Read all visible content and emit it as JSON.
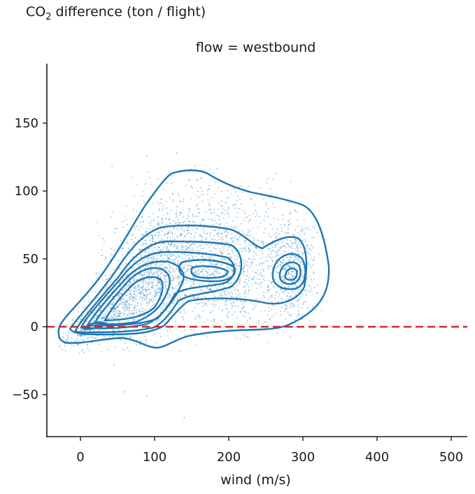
{
  "chart_data": {
    "type": "scatter",
    "title": "flow = westbound",
    "ylabel": "CO2 difference (ton / flight)",
    "ylabel_main": "CO",
    "ylabel_sub": "2",
    "ylabel_rest": " difference (ton / flight)",
    "xlabel": "wind (m/s)",
    "xlim": [
      -47,
      520
    ],
    "ylim": [
      -82,
      192
    ],
    "xticks": [
      0,
      100,
      200,
      300,
      400,
      500
    ],
    "yticks": [
      -50,
      0,
      50,
      100,
      150
    ],
    "reference_line": {
      "y": 0,
      "style": "dashed",
      "color": "#d62728"
    },
    "series_color": "#1f77b4",
    "overlay": "KDE density contours over scatter",
    "density_modes": [
      {
        "x": 95,
        "y": 38
      },
      {
        "x": 200,
        "y": 40
      },
      {
        "x": 285,
        "y": 37
      },
      {
        "x": 20,
        "y": 2
      }
    ],
    "scatter_extent": {
      "x": [
        -30,
        335
      ],
      "y": [
        -67,
        128
      ]
    },
    "outliers": [
      {
        "x": 90,
        "y": 126
      },
      {
        "x": 130,
        "y": 128
      },
      {
        "x": 140,
        "y": -67
      },
      {
        "x": 60,
        "y": -48
      },
      {
        "x": 90,
        "y": -51
      },
      {
        "x": 45,
        "y": -28
      }
    ]
  }
}
